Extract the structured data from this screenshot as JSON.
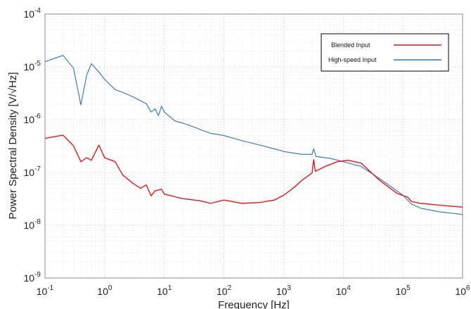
{
  "chart_data": {
    "type": "line",
    "xlabel": "Frequency [Hz]",
    "ylabel": "Power Spectral Density [V/√Hz]",
    "xscale": "log",
    "yscale": "log",
    "xlim": [
      0.1,
      1000000
    ],
    "ylim": [
      1e-09,
      0.0001
    ],
    "grid": true,
    "legend_position": "top-right",
    "x_ticks": [
      {
        "base": "10",
        "exp": "-1"
      },
      {
        "base": "10",
        "exp": "0"
      },
      {
        "base": "10",
        "exp": "1"
      },
      {
        "base": "10",
        "exp": "2"
      },
      {
        "base": "10",
        "exp": "3"
      },
      {
        "base": "10",
        "exp": "4"
      },
      {
        "base": "10",
        "exp": "5"
      },
      {
        "base": "10",
        "exp": "6"
      }
    ],
    "y_ticks": [
      {
        "base": "10",
        "exp": "-9"
      },
      {
        "base": "10",
        "exp": "-8"
      },
      {
        "base": "10",
        "exp": "-7"
      },
      {
        "base": "10",
        "exp": "-6"
      },
      {
        "base": "10",
        "exp": "-5"
      },
      {
        "base": "10",
        "exp": "-4"
      }
    ],
    "series": [
      {
        "name": "Blended Input",
        "color": "#e3161b",
        "points": [
          [
            0.1,
            4.4e-07
          ],
          [
            0.2,
            5.1e-07
          ],
          [
            0.3,
            3.2e-07
          ],
          [
            0.4,
            1.6e-07
          ],
          [
            0.5,
            1.9e-07
          ],
          [
            0.6,
            1.7e-07
          ],
          [
            0.8,
            3.3e-07
          ],
          [
            1,
            1.9e-07
          ],
          [
            1.5,
            1.6e-07
          ],
          [
            2,
            9e-08
          ],
          [
            3,
            6.2e-08
          ],
          [
            4,
            5e-08
          ],
          [
            5,
            5.8e-08
          ],
          [
            6,
            3.6e-08
          ],
          [
            7,
            4.5e-08
          ],
          [
            9,
            4.8e-08
          ],
          [
            10,
            3.9e-08
          ],
          [
            20,
            3.2e-08
          ],
          [
            40,
            2.9e-08
          ],
          [
            60,
            2.6e-08
          ],
          [
            100,
            3e-08
          ],
          [
            200,
            2.6e-08
          ],
          [
            400,
            2.7e-08
          ],
          [
            700,
            3e-08
          ],
          [
            1000,
            3.7e-08
          ],
          [
            1500,
            5.2e-08
          ],
          [
            2000,
            7e-08
          ],
          [
            3000,
            9.8e-08
          ],
          [
            3200,
            1.75e-07
          ],
          [
            3400,
            1.05e-07
          ],
          [
            5000,
            1.3e-07
          ],
          [
            8000,
            1.6e-07
          ],
          [
            12000,
            1.7e-07
          ],
          [
            20000,
            1.5e-07
          ],
          [
            40000,
            7.2e-08
          ],
          [
            80000,
            4e-08
          ],
          [
            120000,
            3.4e-08
          ],
          [
            140000,
            2.8e-08
          ],
          [
            200000,
            2.6e-08
          ],
          [
            400000,
            2.4e-08
          ],
          [
            1000000,
            2.2e-08
          ]
        ]
      },
      {
        "name": "High-speed Input",
        "color": "#2d73b6",
        "points": [
          [
            0.1,
            1.25e-05
          ],
          [
            0.2,
            1.65e-05
          ],
          [
            0.3,
            9.5e-06
          ],
          [
            0.4,
            1.9e-06
          ],
          [
            0.5,
            7e-06
          ],
          [
            0.6,
            1.15e-05
          ],
          [
            0.8,
            8e-06
          ],
          [
            1,
            5.8e-06
          ],
          [
            1.5,
            3.7e-06
          ],
          [
            2,
            3.3e-06
          ],
          [
            3,
            2.7e-06
          ],
          [
            5,
            2e-06
          ],
          [
            6,
            1.4e-06
          ],
          [
            7,
            1.6e-06
          ],
          [
            8,
            1.2e-06
          ],
          [
            9,
            1.8e-06
          ],
          [
            10,
            1.4e-06
          ],
          [
            15,
            9.5e-07
          ],
          [
            25,
            8e-07
          ],
          [
            40,
            6.5e-07
          ],
          [
            60,
            5.5e-07
          ],
          [
            100,
            5e-07
          ],
          [
            200,
            4e-07
          ],
          [
            400,
            3.3e-07
          ],
          [
            700,
            2.8e-07
          ],
          [
            1000,
            2.5e-07
          ],
          [
            2000,
            2.2e-07
          ],
          [
            3000,
            2.2e-07
          ],
          [
            3200,
            2.8e-07
          ],
          [
            3500,
            2e-07
          ],
          [
            6000,
            1.85e-07
          ],
          [
            10000,
            1.6e-07
          ],
          [
            20000,
            1.3e-07
          ],
          [
            50000,
            6.5e-08
          ],
          [
            100000,
            3.7e-08
          ],
          [
            120000,
            3e-08
          ],
          [
            140000,
            2.5e-08
          ],
          [
            200000,
            2.1e-08
          ],
          [
            400000,
            1.8e-08
          ],
          [
            1000000,
            1.6e-08
          ]
        ]
      }
    ]
  }
}
